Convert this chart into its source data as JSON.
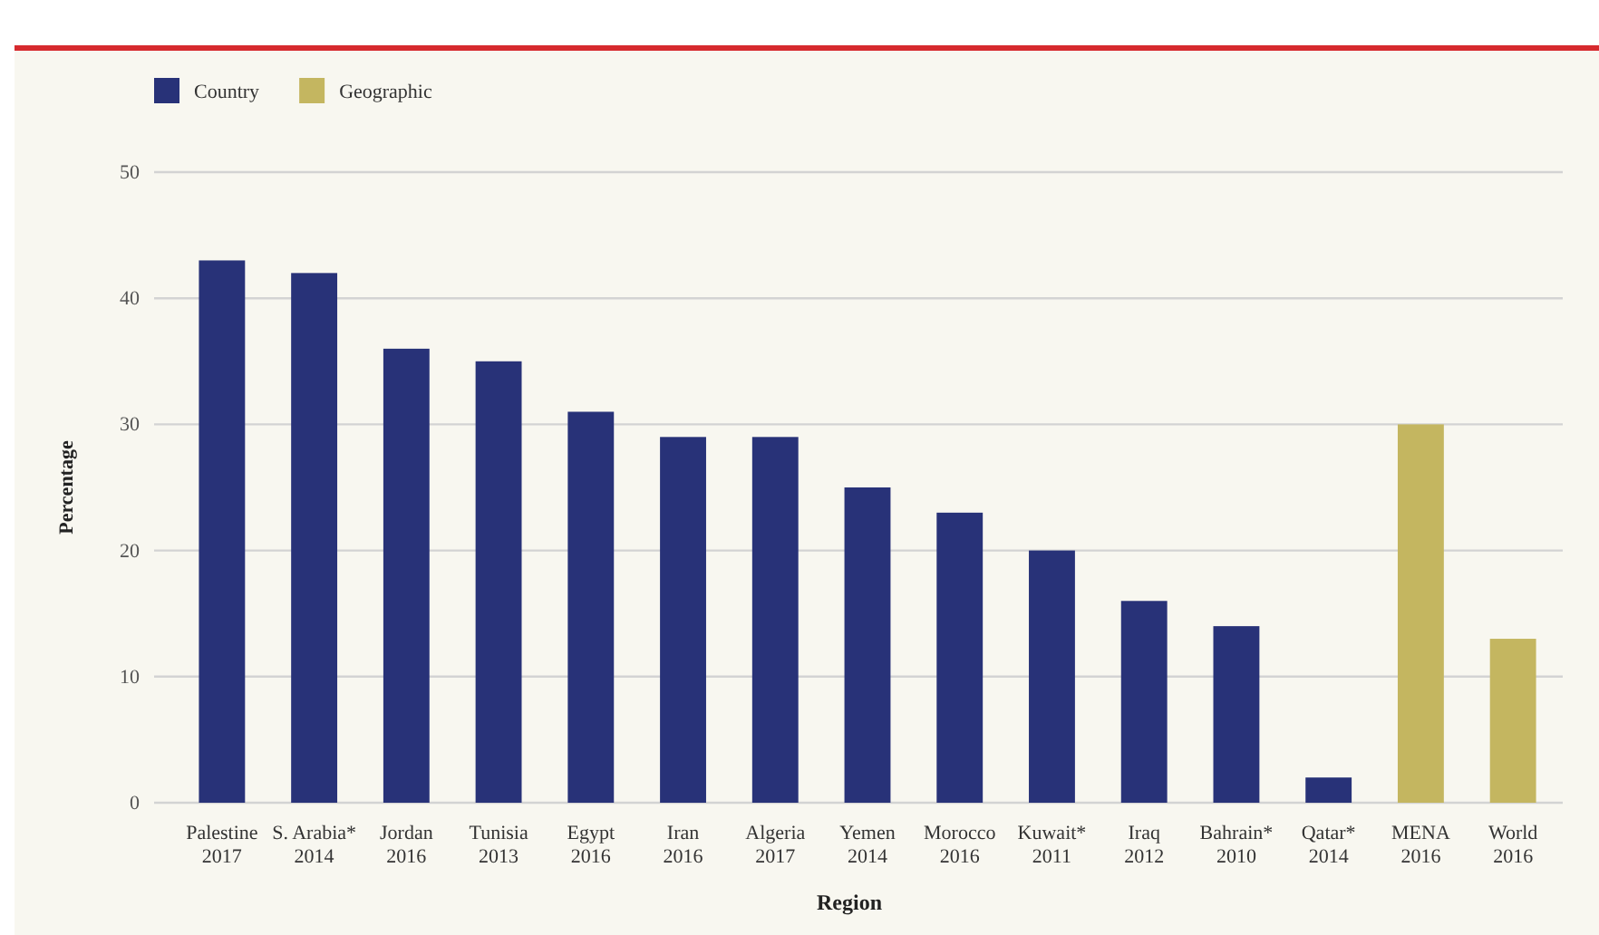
{
  "chart_data": {
    "type": "bar",
    "xlabel": "Region",
    "ylabel": "Percentage",
    "categories": [
      "Palestine\n2017",
      "S. Arabia*\n2014",
      "Jordan\n2016",
      "Tunisia\n2013",
      "Egypt\n2016",
      "Iran\n2016",
      "Algeria\n2017",
      "Yemen\n2014",
      "Morocco\n2016",
      "Kuwait*\n2011",
      "Iraq\n2012",
      "Bahrain*\n2010",
      "Qatar*\n2014",
      "MENA\n2016",
      "World\n2016"
    ],
    "series": [
      {
        "name": "Country",
        "color": "#283278",
        "values": [
          43,
          42,
          36,
          35,
          31,
          29,
          29,
          25,
          23,
          20,
          16,
          14,
          2,
          null,
          null
        ]
      },
      {
        "name": "Geographic",
        "color": "#c4b660",
        "values": [
          null,
          null,
          null,
          null,
          null,
          null,
          null,
          null,
          null,
          null,
          null,
          null,
          null,
          30,
          13
        ]
      }
    ],
    "ylim": [
      0,
      50
    ],
    "yticks": [
      0,
      10,
      20,
      30,
      40,
      50
    ],
    "grid": "y",
    "legend": "top left"
  }
}
